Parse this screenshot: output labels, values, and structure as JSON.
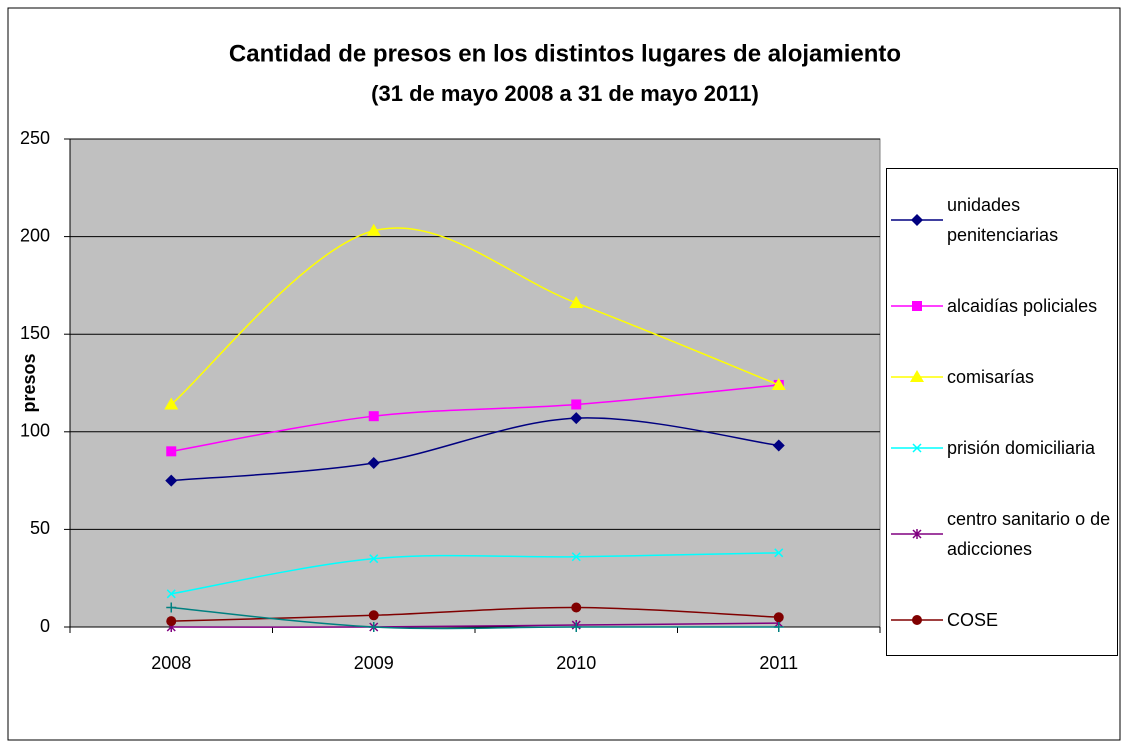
{
  "chart_data": {
    "type": "line",
    "title": "Cantidad de presos en los distintos lugares de alojamiento",
    "subtitle": "(31 de mayo 2008 a 31 de mayo 2011)",
    "y_label": "presos",
    "categories": [
      "2008",
      "2009",
      "2010",
      "2011"
    ],
    "series": [
      {
        "name": "unidades penitenciarias",
        "color": "#000080",
        "marker": "diamond",
        "values": [
          75,
          84,
          107,
          93
        ]
      },
      {
        "name": "alcaidías policiales",
        "color": "#ff00ff",
        "marker": "square",
        "values": [
          90,
          108,
          114,
          124
        ]
      },
      {
        "name": "comisarías",
        "color": "#ffff00",
        "marker": "triangle",
        "values": [
          114,
          203,
          166,
          124
        ]
      },
      {
        "name": "prisión domiciliaria",
        "color": "#00ffff",
        "marker": "x",
        "values": [
          17,
          35,
          36,
          38
        ]
      },
      {
        "name": "centro sanitario o de adicciones",
        "color": "#800080",
        "marker": "star",
        "values": [
          0,
          0,
          1,
          2
        ]
      },
      {
        "name": "COSE",
        "color": "#800000",
        "marker": "circle",
        "values": [
          3,
          6,
          10,
          5
        ]
      },
      {
        "color": "#008080",
        "marker": "plus",
        "values": [
          10,
          0,
          0,
          0
        ]
      }
    ],
    "ylim": [
      0,
      250
    ],
    "yticks": [
      0,
      50,
      100,
      150,
      200,
      250
    ],
    "grid": true,
    "legend": "right"
  }
}
